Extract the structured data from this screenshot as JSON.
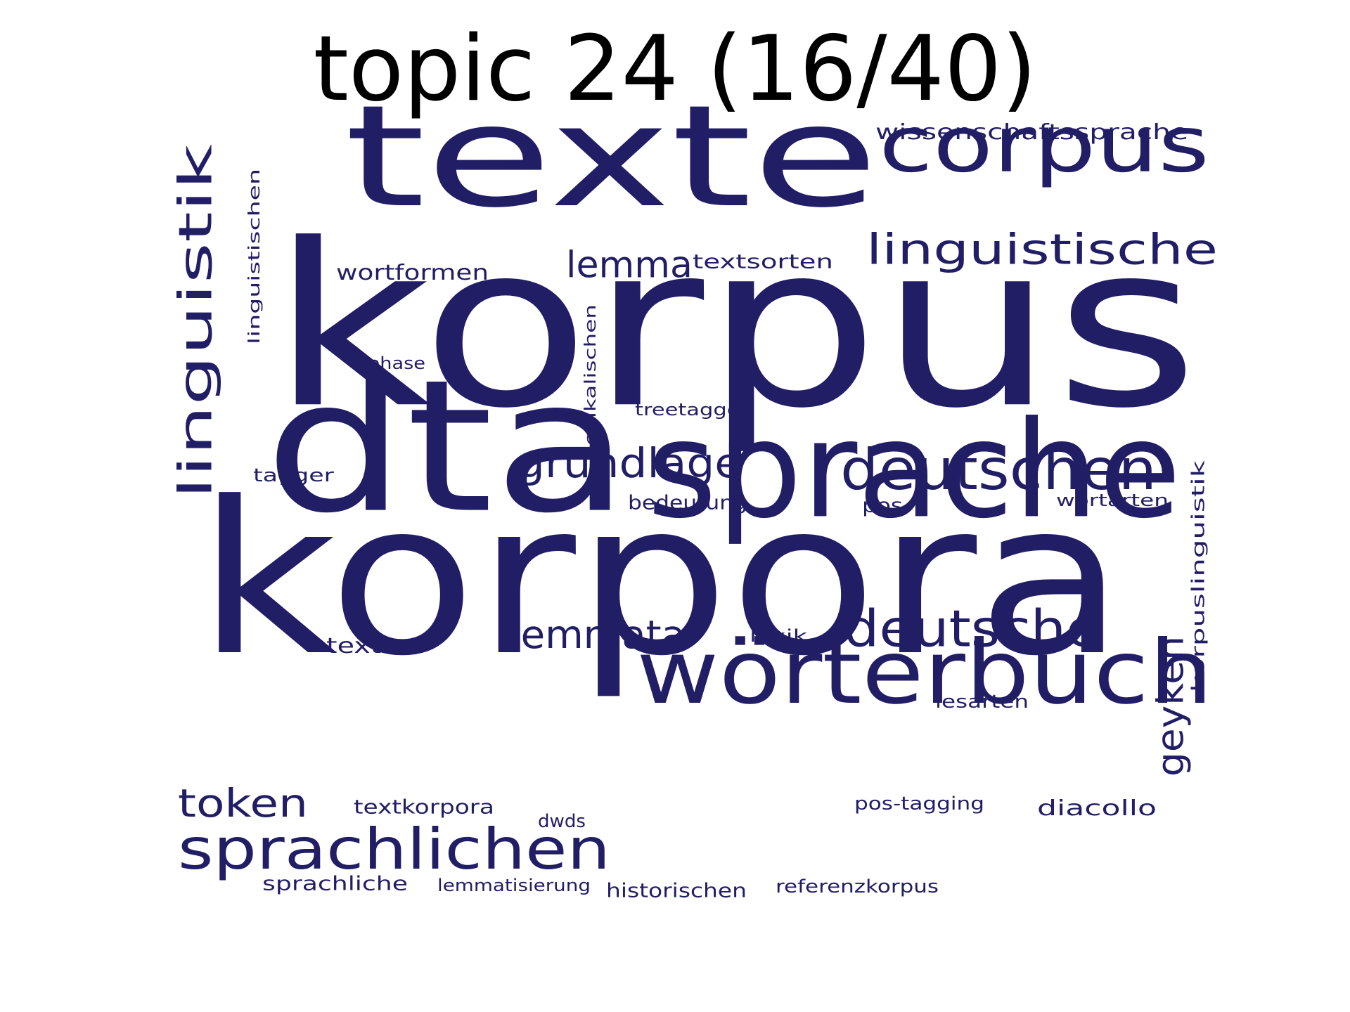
{
  "title": "topic 24 (16/40)",
  "color": "#221e66",
  "words": [
    "korpus",
    "texte",
    "korpora",
    "dta",
    "sprache",
    "corpus",
    "wörterbuch",
    "linguistik",
    "deutschen",
    "sprachlichen",
    "deutsche",
    "linguistische",
    "grundlage",
    "lemmata",
    "lemma",
    "token",
    "geyken",
    "wissenschaftssprache",
    "wortformen",
    "textsorten",
    "linguistischen",
    "lexikalischen",
    "korpuslinguistik",
    "phase",
    "treetagger",
    "tagger",
    "bedeutung",
    "pos",
    "wortarten",
    "texten",
    "lexik",
    "lesarten",
    "textkorpora",
    "pos-tagging",
    "diacollo",
    "dwds",
    "sprachliche",
    "lemmatisierung",
    "historischen",
    "referenzkorpus"
  ]
}
